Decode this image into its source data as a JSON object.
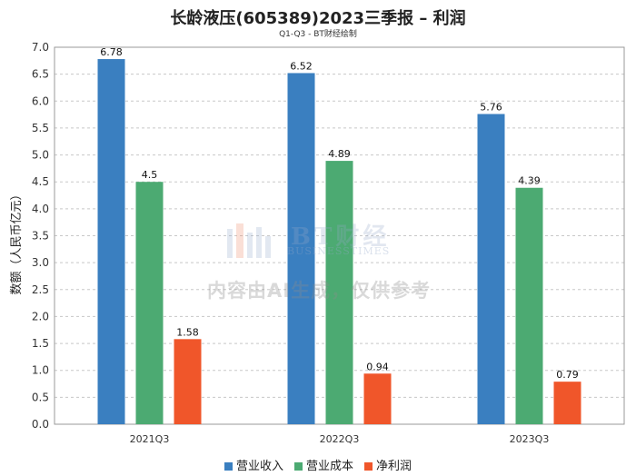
{
  "title": "长龄液压(605389)2023三季报 – 利润",
  "subtitle": "Q1-Q3 - BT财经绘制",
  "watermark": {
    "brand": "BT财经",
    "brand_en": "BUSINESSTIMES",
    "notice": "内容由AI生成，仅供参考"
  },
  "chart_data": {
    "type": "bar",
    "categories": [
      "2021Q3",
      "2022Q3",
      "2023Q3"
    ],
    "series": [
      {
        "name": "营业收入",
        "color": "#3a7fc0",
        "values": [
          6.78,
          6.52,
          5.76
        ],
        "labels": [
          "6.78",
          "6.52",
          "5.76"
        ]
      },
      {
        "name": "营业成本",
        "color": "#4caa72",
        "values": [
          4.5,
          4.89,
          4.39
        ],
        "labels": [
          "4.5",
          "4.89",
          "4.39"
        ]
      },
      {
        "name": "净利润",
        "color": "#f0562a",
        "values": [
          1.58,
          0.94,
          0.79
        ],
        "labels": [
          "1.58",
          "0.94",
          "0.79"
        ]
      }
    ],
    "ylabel": "数额（人民币亿元）",
    "xlabel": "",
    "ylim": [
      0,
      7.0
    ],
    "yticks": [
      "0.0",
      "0.5",
      "1.0",
      "1.5",
      "2.0",
      "2.5",
      "3.0",
      "3.5",
      "4.0",
      "4.5",
      "5.0",
      "5.5",
      "6.0",
      "6.5",
      "7.0"
    ],
    "grid": true,
    "legend_position": "bottom-center"
  }
}
